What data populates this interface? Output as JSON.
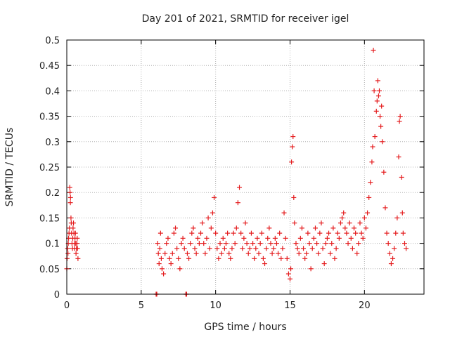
{
  "chart_data": {
    "type": "scatter",
    "title": "Day 201 of 2021, SRMTID for receiver igel",
    "xlabel": "GPS time / hours",
    "ylabel": "SRMTID / TECUs",
    "xlim": [
      0,
      24
    ],
    "ylim": [
      0,
      0.5
    ],
    "xticks": [
      0,
      5,
      10,
      15,
      20
    ],
    "xtick_labels": [
      "0",
      "5",
      "10",
      "15",
      "20"
    ],
    "yticks": [
      0,
      0.05,
      0.1,
      0.15,
      0.2,
      0.25,
      0.3,
      0.35,
      0.4,
      0.45,
      0.5
    ],
    "ytick_labels": [
      "0",
      "0.05",
      "0.1",
      "0.15",
      "0.2",
      "0.25",
      "0.3",
      "0.35",
      "0.4",
      "0.45",
      "0.5"
    ],
    "grid": true,
    "marker": "plus",
    "marker_color": "#e41a1c",
    "series": [
      {
        "points": [
          [
            0.0,
            0.05
          ],
          [
            0.02,
            0.07
          ],
          [
            0.05,
            0.09
          ],
          [
            0.08,
            0.08
          ],
          [
            0.1,
            0.1
          ],
          [
            0.12,
            0.11
          ],
          [
            0.15,
            0.12
          ],
          [
            0.18,
            0.13
          ],
          [
            0.2,
            0.21
          ],
          [
            0.22,
            0.2
          ],
          [
            0.24,
            0.18
          ],
          [
            0.25,
            0.19
          ],
          [
            0.28,
            0.15
          ],
          [
            0.3,
            0.14
          ],
          [
            0.32,
            0.12
          ],
          [
            0.35,
            0.1
          ],
          [
            0.38,
            0.09
          ],
          [
            0.4,
            0.11
          ],
          [
            0.42,
            0.13
          ],
          [
            0.45,
            0.14
          ],
          [
            0.48,
            0.12
          ],
          [
            0.5,
            0.1
          ],
          [
            0.52,
            0.09
          ],
          [
            0.55,
            0.11
          ],
          [
            0.58,
            0.12
          ],
          [
            0.6,
            0.1
          ],
          [
            0.62,
            0.08
          ],
          [
            0.65,
            0.09
          ],
          [
            0.68,
            0.1
          ],
          [
            0.7,
            0.11
          ],
          [
            0.72,
            0.09
          ],
          [
            0.75,
            0.07
          ],
          [
            6.0,
            0.0
          ],
          [
            6.05,
            0.0
          ],
          [
            6.1,
            0.1
          ],
          [
            6.15,
            0.08
          ],
          [
            6.2,
            0.06
          ],
          [
            6.25,
            0.09
          ],
          [
            6.3,
            0.12
          ],
          [
            6.35,
            0.07
          ],
          [
            6.4,
            0.05
          ],
          [
            6.5,
            0.04
          ],
          [
            6.6,
            0.08
          ],
          [
            6.7,
            0.1
          ],
          [
            6.8,
            0.11
          ],
          [
            6.9,
            0.07
          ],
          [
            7.0,
            0.06
          ],
          [
            7.1,
            0.08
          ],
          [
            7.2,
            0.12
          ],
          [
            7.3,
            0.13
          ],
          [
            7.4,
            0.09
          ],
          [
            7.5,
            0.07
          ],
          [
            7.6,
            0.05
          ],
          [
            7.7,
            0.1
          ],
          [
            7.8,
            0.11
          ],
          [
            7.9,
            0.09
          ],
          [
            8.0,
            0.0
          ],
          [
            8.05,
            0.0
          ],
          [
            8.1,
            0.08
          ],
          [
            8.2,
            0.07
          ],
          [
            8.3,
            0.1
          ],
          [
            8.4,
            0.12
          ],
          [
            8.5,
            0.13
          ],
          [
            8.6,
            0.09
          ],
          [
            8.7,
            0.08
          ],
          [
            8.8,
            0.11
          ],
          [
            8.9,
            0.1
          ],
          [
            9.0,
            0.12
          ],
          [
            9.1,
            0.14
          ],
          [
            9.2,
            0.1
          ],
          [
            9.3,
            0.08
          ],
          [
            9.4,
            0.11
          ],
          [
            9.5,
            0.15
          ],
          [
            9.6,
            0.09
          ],
          [
            9.7,
            0.13
          ],
          [
            9.8,
            0.16
          ],
          [
            9.9,
            0.19
          ],
          [
            10.0,
            0.12
          ],
          [
            10.1,
            0.09
          ],
          [
            10.2,
            0.07
          ],
          [
            10.3,
            0.1
          ],
          [
            10.4,
            0.08
          ],
          [
            10.5,
            0.11
          ],
          [
            10.6,
            0.09
          ],
          [
            10.7,
            0.1
          ],
          [
            10.8,
            0.12
          ],
          [
            10.9,
            0.08
          ],
          [
            11.0,
            0.07
          ],
          [
            11.1,
            0.09
          ],
          [
            11.2,
            0.12
          ],
          [
            11.3,
            0.1
          ],
          [
            11.4,
            0.13
          ],
          [
            11.5,
            0.18
          ],
          [
            11.6,
            0.21
          ],
          [
            11.7,
            0.12
          ],
          [
            11.8,
            0.09
          ],
          [
            11.9,
            0.11
          ],
          [
            12.0,
            0.14
          ],
          [
            12.1,
            0.1
          ],
          [
            12.2,
            0.08
          ],
          [
            12.3,
            0.09
          ],
          [
            12.4,
            0.12
          ],
          [
            12.5,
            0.1
          ],
          [
            12.6,
            0.07
          ],
          [
            12.7,
            0.09
          ],
          [
            12.8,
            0.11
          ],
          [
            12.9,
            0.08
          ],
          [
            13.0,
            0.1
          ],
          [
            13.1,
            0.12
          ],
          [
            13.2,
            0.07
          ],
          [
            13.3,
            0.06
          ],
          [
            13.4,
            0.09
          ],
          [
            13.5,
            0.11
          ],
          [
            13.6,
            0.13
          ],
          [
            13.7,
            0.1
          ],
          [
            13.8,
            0.08
          ],
          [
            13.9,
            0.09
          ],
          [
            14.0,
            0.11
          ],
          [
            14.1,
            0.1
          ],
          [
            14.2,
            0.08
          ],
          [
            14.3,
            0.12
          ],
          [
            14.4,
            0.07
          ],
          [
            14.5,
            0.09
          ],
          [
            14.6,
            0.16
          ],
          [
            14.7,
            0.11
          ],
          [
            14.8,
            0.07
          ],
          [
            14.9,
            0.04
          ],
          [
            15.0,
            0.03
          ],
          [
            15.05,
            0.05
          ],
          [
            15.1,
            0.26
          ],
          [
            15.15,
            0.29
          ],
          [
            15.2,
            0.31
          ],
          [
            15.25,
            0.19
          ],
          [
            15.3,
            0.14
          ],
          [
            15.4,
            0.1
          ],
          [
            15.5,
            0.09
          ],
          [
            15.6,
            0.08
          ],
          [
            15.7,
            0.11
          ],
          [
            15.8,
            0.13
          ],
          [
            15.9,
            0.09
          ],
          [
            16.0,
            0.07
          ],
          [
            16.1,
            0.08
          ],
          [
            16.2,
            0.12
          ],
          [
            16.3,
            0.1
          ],
          [
            16.4,
            0.05
          ],
          [
            16.5,
            0.09
          ],
          [
            16.6,
            0.11
          ],
          [
            16.7,
            0.13
          ],
          [
            16.8,
            0.1
          ],
          [
            16.9,
            0.08
          ],
          [
            17.0,
            0.12
          ],
          [
            17.1,
            0.14
          ],
          [
            17.2,
            0.09
          ],
          [
            17.3,
            0.06
          ],
          [
            17.4,
            0.1
          ],
          [
            17.5,
            0.11
          ],
          [
            17.6,
            0.12
          ],
          [
            17.7,
            0.08
          ],
          [
            17.8,
            0.1
          ],
          [
            17.9,
            0.13
          ],
          [
            18.0,
            0.07
          ],
          [
            18.1,
            0.09
          ],
          [
            18.2,
            0.12
          ],
          [
            18.3,
            0.11
          ],
          [
            18.4,
            0.14
          ],
          [
            18.5,
            0.15
          ],
          [
            18.6,
            0.16
          ],
          [
            18.7,
            0.13
          ],
          [
            18.8,
            0.12
          ],
          [
            18.9,
            0.1
          ],
          [
            19.0,
            0.14
          ],
          [
            19.1,
            0.11
          ],
          [
            19.2,
            0.09
          ],
          [
            19.3,
            0.13
          ],
          [
            19.4,
            0.12
          ],
          [
            19.5,
            0.08
          ],
          [
            19.6,
            0.1
          ],
          [
            19.7,
            0.14
          ],
          [
            19.8,
            0.12
          ],
          [
            19.9,
            0.11
          ],
          [
            20.0,
            0.15
          ],
          [
            20.1,
            0.13
          ],
          [
            20.2,
            0.16
          ],
          [
            20.3,
            0.19
          ],
          [
            20.4,
            0.22
          ],
          [
            20.5,
            0.26
          ],
          [
            20.55,
            0.29
          ],
          [
            20.6,
            0.48
          ],
          [
            20.65,
            0.4
          ],
          [
            20.7,
            0.31
          ],
          [
            20.8,
            0.36
          ],
          [
            20.85,
            0.38
          ],
          [
            20.9,
            0.42
          ],
          [
            20.95,
            0.39
          ],
          [
            21.0,
            0.4
          ],
          [
            21.05,
            0.35
          ],
          [
            21.1,
            0.33
          ],
          [
            21.15,
            0.37
          ],
          [
            21.2,
            0.3
          ],
          [
            21.3,
            0.24
          ],
          [
            21.4,
            0.17
          ],
          [
            21.5,
            0.12
          ],
          [
            21.6,
            0.1
          ],
          [
            21.7,
            0.08
          ],
          [
            21.8,
            0.06
          ],
          [
            21.9,
            0.07
          ],
          [
            22.0,
            0.09
          ],
          [
            22.1,
            0.12
          ],
          [
            22.2,
            0.15
          ],
          [
            22.3,
            0.27
          ],
          [
            22.35,
            0.34
          ],
          [
            22.4,
            0.35
          ],
          [
            22.5,
            0.23
          ],
          [
            22.55,
            0.16
          ],
          [
            22.6,
            0.12
          ],
          [
            22.7,
            0.1
          ],
          [
            22.8,
            0.09
          ]
        ]
      }
    ]
  }
}
